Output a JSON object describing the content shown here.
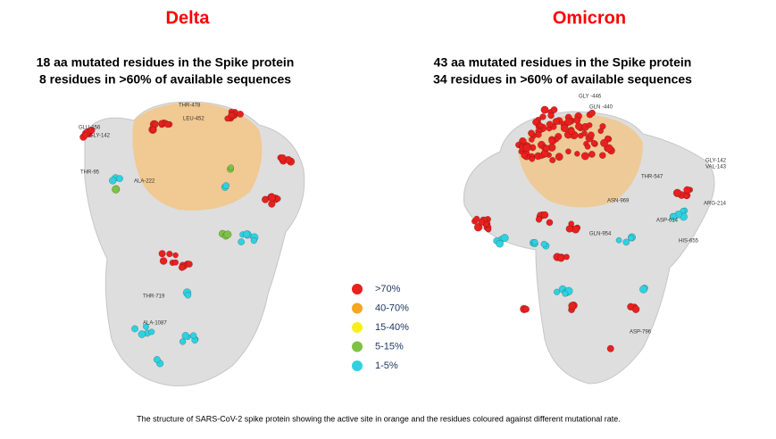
{
  "panels": [
    {
      "title": "Delta",
      "subtitle_lines": [
        "18 aa mutated residues in the Spike protein",
        "8 residues in >60% of available sequences"
      ],
      "residue_labels": [
        "GLU-156",
        "GLY-142",
        "THR-478",
        "LEU-452",
        "THR-95",
        "ALA-222",
        "THR-719",
        "ALA-1087"
      ]
    },
    {
      "title": "Omicron",
      "subtitle_lines": [
        "43 aa mutated residues in the Spike protein",
        "34 residues in >60% of available sequences"
      ],
      "residue_labels": [
        "GLY -446",
        "GLN -440",
        "THR-547",
        "ASN-969",
        "GLN-954",
        "ASP-614",
        "HIS-655",
        "GLY-142",
        "VAL-143",
        "ARG-214",
        "ASP-796"
      ]
    }
  ],
  "legend": [
    {
      "label": ">70%",
      "color": "#e8201e"
    },
    {
      "label": "40-70%",
      "color": "#f5a623"
    },
    {
      "label": "15-40%",
      "color": "#f7ef1c"
    },
    {
      "label": "5-15%",
      "color": "#7dc243"
    },
    {
      "label": "1-5%",
      "color": "#2fd1e0"
    }
  ],
  "caption": "The structure of SARS-CoV-2 spike protein showing the active site in orange and the residues coloured against different mutational rate."
}
